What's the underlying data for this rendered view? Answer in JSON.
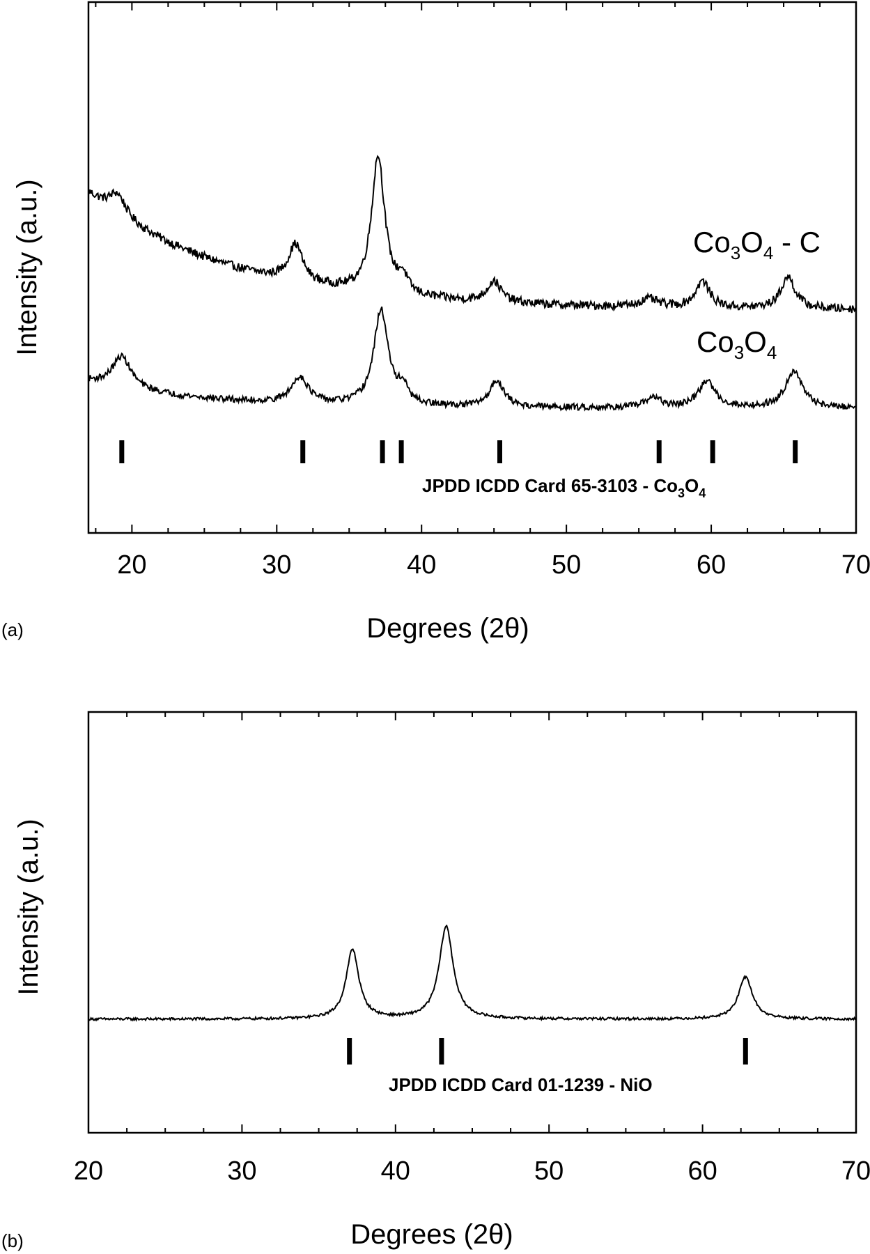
{
  "chart_data": [
    {
      "type": "line",
      "panel_label": "(a)",
      "xlabel": "Degrees (2θ)",
      "ylabel": "Intensity (a.u.)",
      "xlim": [
        17,
        70
      ],
      "ylim": [
        0,
        1
      ],
      "xticks": [
        "20",
        "30",
        "40",
        "50",
        "60",
        "70"
      ],
      "series": [
        {
          "name": "Co3O4 - C",
          "label_parts": [
            "Co",
            "3",
            "O",
            "4",
            " - C"
          ],
          "baseline": 0.42,
          "decay_amp": 0.22,
          "decay_len": 10,
          "noise": 0.008,
          "peaks": [
            {
              "x": 19.0,
              "h": 0.04,
              "w": 0.7
            },
            {
              "x": 31.3,
              "h": 0.07,
              "w": 0.6
            },
            {
              "x": 37.0,
              "h": 0.26,
              "w": 0.55
            },
            {
              "x": 38.7,
              "h": 0.03,
              "w": 0.4
            },
            {
              "x": 45.0,
              "h": 0.04,
              "w": 0.6
            },
            {
              "x": 55.7,
              "h": 0.015,
              "w": 0.8
            },
            {
              "x": 59.4,
              "h": 0.05,
              "w": 0.6
            },
            {
              "x": 65.3,
              "h": 0.06,
              "w": 0.6
            }
          ]
        },
        {
          "name": "Co3O4",
          "label_parts": [
            "Co",
            "3",
            "O",
            "4",
            ""
          ],
          "baseline": 0.235,
          "decay_amp": 0.05,
          "decay_len": 8,
          "noise": 0.006,
          "peaks": [
            {
              "x": 19.3,
              "h": 0.06,
              "w": 0.8
            },
            {
              "x": 31.6,
              "h": 0.05,
              "w": 0.7
            },
            {
              "x": 37.2,
              "h": 0.18,
              "w": 0.6
            },
            {
              "x": 38.7,
              "h": 0.03,
              "w": 0.4
            },
            {
              "x": 45.2,
              "h": 0.05,
              "w": 0.6
            },
            {
              "x": 56.0,
              "h": 0.02,
              "w": 0.6
            },
            {
              "x": 59.7,
              "h": 0.05,
              "w": 0.7
            },
            {
              "x": 65.7,
              "h": 0.07,
              "w": 0.7
            }
          ]
        }
      ],
      "reference": {
        "label_main": "JPDD ICDD Card 65-3103  -  Co",
        "label_sub1": "3",
        "label_mid": "O",
        "label_sub2": "4",
        "positions": [
          19.3,
          31.8,
          37.3,
          38.6,
          45.4,
          56.4,
          60.1,
          65.8
        ]
      }
    },
    {
      "type": "line",
      "panel_label": "(b)",
      "xlabel": "Degrees (2θ)",
      "ylabel": "Intensity (a.u.)",
      "xlim": [
        20,
        70
      ],
      "ylim": [
        0,
        1
      ],
      "xticks": [
        "20",
        "30",
        "40",
        "50",
        "60",
        "70"
      ],
      "series": [
        {
          "name": "NiO",
          "label_parts": [
            "",
            "",
            "",
            "",
            ""
          ],
          "baseline": 0.27,
          "decay_amp": 0.0,
          "decay_len": 10,
          "noise": 0.003,
          "peaks": [
            {
              "x": 37.2,
              "h": 0.165,
              "w": 0.5
            },
            {
              "x": 43.3,
              "h": 0.22,
              "w": 0.55
            },
            {
              "x": 62.8,
              "h": 0.1,
              "w": 0.55
            }
          ]
        }
      ],
      "reference": {
        "label_main": "JPDD ICDD Card 01-1239  -  NiO",
        "label_sub1": "",
        "label_mid": "",
        "label_sub2": "",
        "positions": [
          37.0,
          43.0,
          62.8
        ]
      }
    }
  ]
}
